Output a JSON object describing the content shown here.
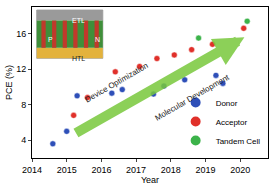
{
  "chart_data": {
    "type": "scatter",
    "x_label": "Year",
    "y_label": "PCE (%)",
    "xlim": [
      2014,
      2020.8
    ],
    "xticks": [
      2014,
      2015,
      2016,
      2017,
      2018,
      2019,
      2020
    ],
    "ylim": [
      2,
      19
    ],
    "yticks": [
      4,
      8,
      12,
      16
    ],
    "legend": "lower right",
    "series": [
      {
        "name": "Donor",
        "color": "#2e4fb8",
        "marker": "circle",
        "x": [
          2014.6,
          2015.0,
          2015.3,
          2016.3,
          2016.6,
          2017.5,
          2017.8,
          2018.4,
          2019.3,
          2019.5
        ],
        "values": [
          3.6,
          5.0,
          9.0,
          9.3,
          9.7,
          9.2,
          10.1,
          10.8,
          11.3,
          10.4
        ]
      },
      {
        "name": "Acceptor",
        "color": "#e0302a",
        "marker": "circle",
        "x": [
          2015.2,
          2015.6,
          2016.4,
          2017.1,
          2017.6,
          2018.1,
          2018.6,
          2019.2,
          2020.1
        ],
        "values": [
          6.8,
          8.8,
          11.7,
          12.3,
          13.2,
          13.6,
          14.2,
          14.8,
          16.6
        ]
      },
      {
        "name": "Tandem Cell",
        "color": "#3cb34a",
        "marker": "circle",
        "x": [
          2018.8,
          2020.2
        ],
        "values": [
          15.5,
          17.4
        ]
      }
    ],
    "annotations": [
      "Device Optimization",
      "Molecular Development"
    ],
    "inset_labels": [
      "ETL",
      "HTL",
      "P",
      "N"
    ]
  }
}
